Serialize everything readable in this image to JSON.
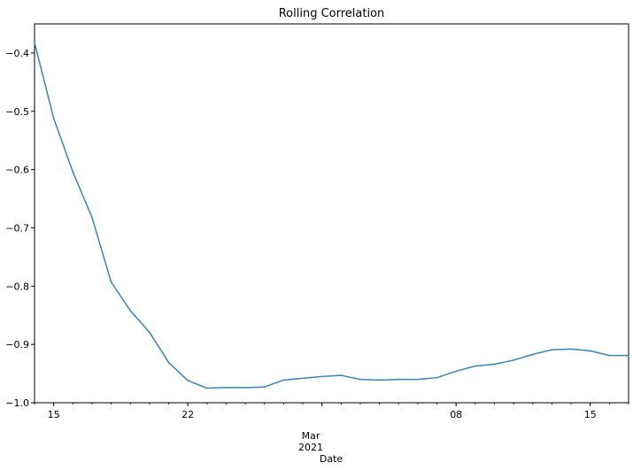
{
  "chart_data": {
    "type": "line",
    "title": "Rolling Correlation",
    "xlabel": "Date",
    "ylabel": "",
    "x": [
      "2021-02-14",
      "2021-02-15",
      "2021-02-16",
      "2021-02-17",
      "2021-02-18",
      "2021-02-19",
      "2021-02-20",
      "2021-02-21",
      "2021-02-22",
      "2021-02-23",
      "2021-02-24",
      "2021-02-25",
      "2021-02-26",
      "2021-02-27",
      "2021-02-28",
      "2021-03-01",
      "2021-03-02",
      "2021-03-03",
      "2021-03-04",
      "2021-03-05",
      "2021-03-06",
      "2021-03-07",
      "2021-03-08",
      "2021-03-09",
      "2021-03-10",
      "2021-03-11",
      "2021-03-12",
      "2021-03-13",
      "2021-03-14",
      "2021-03-15",
      "2021-03-16",
      "2021-03-17"
    ],
    "series": [
      {
        "color": "#3c84b4",
        "values": [
          -0.382,
          -0.512,
          -0.604,
          -0.682,
          -0.793,
          -0.842,
          -0.879,
          -0.931,
          -0.962,
          -0.975,
          -0.974,
          -0.974,
          -0.973,
          -0.961,
          -0.958,
          -0.955,
          -0.953,
          -0.96,
          -0.961,
          -0.96,
          -0.96,
          -0.957,
          -0.946,
          -0.937,
          -0.934,
          -0.927,
          -0.917,
          -0.909,
          -0.908,
          -0.911,
          -0.919,
          -0.919
        ]
      }
    ],
    "xlim": [
      "2021-02-14",
      "2021-03-17"
    ],
    "ylim": [
      -1.0,
      -0.35
    ],
    "yticks": [
      -1.0,
      -0.9,
      -0.8,
      -0.7,
      -0.6,
      -0.5,
      -0.4
    ],
    "ytick_labels": [
      "−1.0",
      "−0.9",
      "−0.8",
      "−0.7",
      "−0.6",
      "−0.5",
      "−0.4"
    ],
    "xticks": [
      {
        "date": "2021-02-15",
        "label": "15"
      },
      {
        "date": "2021-02-22",
        "label": "22"
      },
      {
        "date": "2021-03-08",
        "label": "08"
      },
      {
        "date": "2021-03-15",
        "label": "15"
      }
    ],
    "month_label": {
      "date": "2021-03-01",
      "month": "Mar",
      "year": "2021"
    },
    "grid": false,
    "legend": "none"
  }
}
